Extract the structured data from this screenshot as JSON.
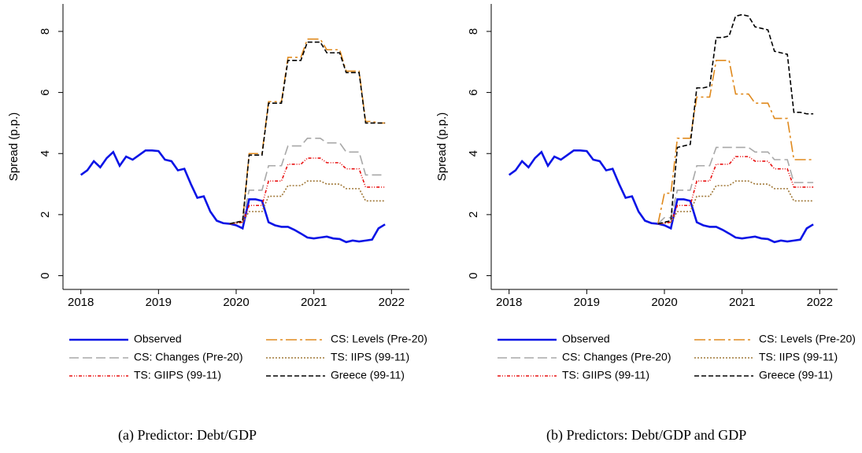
{
  "chart_data": [
    {
      "type": "line",
      "caption": "(a) Predictor: Debt/GDP",
      "y_label": "Spread (p.p.)",
      "x": [
        2018,
        2018.083,
        2018.167,
        2018.25,
        2018.333,
        2018.417,
        2018.5,
        2018.583,
        2018.667,
        2018.75,
        2018.833,
        2018.917,
        2019,
        2019.083,
        2019.167,
        2019.25,
        2019.333,
        2019.417,
        2019.5,
        2019.583,
        2019.667,
        2019.75,
        2019.833,
        2019.917,
        2020,
        2020.083,
        2020.167,
        2020.25,
        2020.333,
        2020.417,
        2020.5,
        2020.583,
        2020.667,
        2020.75,
        2020.833,
        2020.917,
        2021,
        2021.083,
        2021.167,
        2021.25,
        2021.333,
        2021.417,
        2021.5,
        2021.583,
        2021.667,
        2021.75,
        2021.833,
        2021.917
      ],
      "xlim": [
        2017.77,
        2022.23
      ],
      "xticks": [
        2018,
        2019,
        2020,
        2021,
        2022
      ],
      "ylim": [
        -0.45,
        8.9
      ],
      "yticks": [
        0,
        2,
        4,
        6,
        8
      ],
      "series": [
        {
          "name": "Observed",
          "color": "#0a14e6",
          "dash": "none",
          "width": 2.6,
          "values": [
            3.3,
            3.45,
            3.75,
            3.55,
            3.85,
            4.05,
            3.6,
            3.9,
            3.8,
            3.95,
            4.1,
            4.1,
            4.08,
            3.8,
            3.75,
            3.45,
            3.5,
            3.0,
            2.55,
            2.6,
            2.1,
            1.8,
            1.72,
            1.7,
            1.65,
            1.55,
            2.5,
            2.5,
            2.45,
            1.75,
            1.65,
            1.6,
            1.6,
            1.5,
            1.38,
            1.25,
            1.22,
            1.25,
            1.28,
            1.22,
            1.2,
            1.1,
            1.15,
            1.12,
            1.15,
            1.18,
            1.55,
            1.68
          ]
        },
        {
          "name": "CS: Levels (Pre-20)",
          "color": "#e08a1e",
          "dash": "14,4,3,4",
          "width": 1.6,
          "values": [
            null,
            null,
            null,
            null,
            null,
            null,
            null,
            null,
            null,
            null,
            null,
            null,
            null,
            null,
            null,
            null,
            null,
            null,
            null,
            null,
            null,
            null,
            null,
            1.7,
            1.75,
            1.8,
            4.0,
            4.0,
            4.0,
            5.7,
            5.7,
            5.7,
            7.15,
            7.15,
            7.15,
            7.75,
            7.75,
            7.75,
            7.4,
            7.4,
            7.4,
            6.7,
            6.7,
            6.7,
            5.05,
            5.05,
            5.0,
            5.0
          ]
        },
        {
          "name": "CS: Changes (Pre-20)",
          "color": "#a8a8a8",
          "dash": "12,5",
          "width": 1.6,
          "values": [
            null,
            null,
            null,
            null,
            null,
            null,
            null,
            null,
            null,
            null,
            null,
            null,
            null,
            null,
            null,
            null,
            null,
            null,
            null,
            null,
            null,
            null,
            null,
            1.7,
            1.75,
            1.8,
            2.8,
            2.8,
            2.8,
            3.6,
            3.6,
            3.6,
            4.25,
            4.25,
            4.25,
            4.5,
            4.5,
            4.5,
            4.35,
            4.35,
            4.35,
            4.05,
            4.05,
            4.05,
            3.3,
            3.3,
            3.3,
            3.3
          ]
        },
        {
          "name": "TS: IIPS (99-11)",
          "color": "#a07838",
          "dash": "2,2",
          "width": 1.6,
          "values": [
            null,
            null,
            null,
            null,
            null,
            null,
            null,
            null,
            null,
            null,
            null,
            null,
            null,
            null,
            null,
            null,
            null,
            null,
            null,
            null,
            null,
            null,
            null,
            1.7,
            1.72,
            1.75,
            2.1,
            2.1,
            2.1,
            2.6,
            2.6,
            2.6,
            2.95,
            2.95,
            2.95,
            3.1,
            3.1,
            3.1,
            3.0,
            3.0,
            3.0,
            2.85,
            2.85,
            2.85,
            2.45,
            2.45,
            2.45,
            2.45
          ]
        },
        {
          "name": "TS: GIIPS (99-11)",
          "color": "#e81010",
          "dash": "4,2,1,2,1,2",
          "width": 1.6,
          "values": [
            null,
            null,
            null,
            null,
            null,
            null,
            null,
            null,
            null,
            null,
            null,
            null,
            null,
            null,
            null,
            null,
            null,
            null,
            null,
            null,
            null,
            null,
            null,
            1.7,
            1.72,
            1.75,
            2.3,
            2.3,
            2.3,
            3.1,
            3.1,
            3.1,
            3.65,
            3.65,
            3.65,
            3.85,
            3.85,
            3.85,
            3.7,
            3.7,
            3.7,
            3.5,
            3.5,
            3.5,
            2.9,
            2.9,
            2.9,
            2.9
          ]
        },
        {
          "name": "Greece (99-11)",
          "color": "#000000",
          "dash": "6,3",
          "width": 1.6,
          "values": [
            null,
            null,
            null,
            null,
            null,
            null,
            null,
            null,
            null,
            null,
            null,
            null,
            null,
            null,
            null,
            null,
            null,
            null,
            null,
            null,
            null,
            null,
            null,
            1.7,
            1.75,
            1.78,
            3.95,
            3.95,
            3.95,
            5.65,
            5.65,
            5.65,
            7.05,
            7.05,
            7.05,
            7.65,
            7.65,
            7.65,
            7.3,
            7.3,
            7.3,
            6.65,
            6.65,
            6.65,
            5.0,
            5.0,
            5.0,
            5.0
          ]
        }
      ]
    },
    {
      "type": "line",
      "caption": "(b) Predictors: Debt/GDP and GDP",
      "y_label": "Spread (p.p.)",
      "x": [
        2018,
        2018.083,
        2018.167,
        2018.25,
        2018.333,
        2018.417,
        2018.5,
        2018.583,
        2018.667,
        2018.75,
        2018.833,
        2018.917,
        2019,
        2019.083,
        2019.167,
        2019.25,
        2019.333,
        2019.417,
        2019.5,
        2019.583,
        2019.667,
        2019.75,
        2019.833,
        2019.917,
        2020,
        2020.083,
        2020.167,
        2020.25,
        2020.333,
        2020.417,
        2020.5,
        2020.583,
        2020.667,
        2020.75,
        2020.833,
        2020.917,
        2021,
        2021.083,
        2021.167,
        2021.25,
        2021.333,
        2021.417,
        2021.5,
        2021.583,
        2021.667,
        2021.75,
        2021.833,
        2021.917
      ],
      "xlim": [
        2017.77,
        2022.23
      ],
      "xticks": [
        2018,
        2019,
        2020,
        2021,
        2022
      ],
      "ylim": [
        -0.45,
        8.9
      ],
      "yticks": [
        0,
        2,
        4,
        6,
        8
      ],
      "series": [
        {
          "name": "Observed",
          "color": "#0a14e6",
          "dash": "none",
          "width": 2.6,
          "values": [
            3.3,
            3.45,
            3.75,
            3.55,
            3.85,
            4.05,
            3.6,
            3.9,
            3.8,
            3.95,
            4.1,
            4.1,
            4.08,
            3.8,
            3.75,
            3.45,
            3.5,
            3.0,
            2.55,
            2.6,
            2.1,
            1.8,
            1.72,
            1.7,
            1.65,
            1.55,
            2.5,
            2.5,
            2.45,
            1.75,
            1.65,
            1.6,
            1.6,
            1.5,
            1.38,
            1.25,
            1.22,
            1.25,
            1.28,
            1.22,
            1.2,
            1.1,
            1.15,
            1.12,
            1.15,
            1.18,
            1.55,
            1.68
          ]
        },
        {
          "name": "CS: Levels (Pre-20)",
          "color": "#e08a1e",
          "dash": "14,4,3,4",
          "width": 1.6,
          "values": [
            null,
            null,
            null,
            null,
            null,
            null,
            null,
            null,
            null,
            null,
            null,
            null,
            null,
            null,
            null,
            null,
            null,
            null,
            null,
            null,
            null,
            null,
            null,
            1.7,
            2.7,
            2.7,
            4.5,
            4.5,
            4.5,
            5.85,
            5.85,
            5.85,
            7.05,
            7.05,
            7.05,
            5.95,
            5.95,
            5.95,
            5.65,
            5.65,
            5.65,
            5.15,
            5.15,
            5.15,
            3.8,
            3.8,
            3.8,
            3.8
          ]
        },
        {
          "name": "CS: Changes (Pre-20)",
          "color": "#a8a8a8",
          "dash": "12,5",
          "width": 1.6,
          "values": [
            null,
            null,
            null,
            null,
            null,
            null,
            null,
            null,
            null,
            null,
            null,
            null,
            null,
            null,
            null,
            null,
            null,
            null,
            null,
            null,
            null,
            null,
            null,
            1.7,
            1.9,
            1.9,
            2.8,
            2.8,
            2.8,
            3.6,
            3.6,
            3.6,
            4.2,
            4.2,
            4.2,
            4.2,
            4.2,
            4.2,
            4.05,
            4.05,
            4.05,
            3.8,
            3.8,
            3.8,
            3.05,
            3.05,
            3.05,
            3.05
          ]
        },
        {
          "name": "TS: IIPS (99-11)",
          "color": "#a07838",
          "dash": "2,2",
          "width": 1.6,
          "values": [
            null,
            null,
            null,
            null,
            null,
            null,
            null,
            null,
            null,
            null,
            null,
            null,
            null,
            null,
            null,
            null,
            null,
            null,
            null,
            null,
            null,
            null,
            null,
            1.7,
            1.72,
            1.75,
            2.1,
            2.1,
            2.1,
            2.6,
            2.6,
            2.6,
            2.95,
            2.95,
            2.95,
            3.1,
            3.1,
            3.1,
            3.0,
            3.0,
            3.0,
            2.85,
            2.85,
            2.85,
            2.45,
            2.45,
            2.45,
            2.45
          ]
        },
        {
          "name": "TS: GIIPS (99-11)",
          "color": "#e81010",
          "dash": "4,2,1,2,1,2",
          "width": 1.6,
          "values": [
            null,
            null,
            null,
            null,
            null,
            null,
            null,
            null,
            null,
            null,
            null,
            null,
            null,
            null,
            null,
            null,
            null,
            null,
            null,
            null,
            null,
            null,
            null,
            1.7,
            1.72,
            1.75,
            2.3,
            2.3,
            2.3,
            3.1,
            3.1,
            3.1,
            3.65,
            3.65,
            3.65,
            3.9,
            3.9,
            3.9,
            3.75,
            3.75,
            3.75,
            3.5,
            3.5,
            3.5,
            2.9,
            2.9,
            2.9,
            2.9
          ]
        },
        {
          "name": "Greece (99-11)",
          "color": "#000000",
          "dash": "6,3",
          "width": 1.6,
          "values": [
            null,
            null,
            null,
            null,
            null,
            null,
            null,
            null,
            null,
            null,
            null,
            null,
            null,
            null,
            null,
            null,
            null,
            null,
            null,
            null,
            null,
            null,
            null,
            1.7,
            1.75,
            1.8,
            4.2,
            4.25,
            4.3,
            6.15,
            6.15,
            6.2,
            7.8,
            7.8,
            7.85,
            8.5,
            8.55,
            8.5,
            8.15,
            8.1,
            8.05,
            7.35,
            7.3,
            7.25,
            5.35,
            5.35,
            5.3,
            5.3
          ]
        }
      ]
    }
  ]
}
